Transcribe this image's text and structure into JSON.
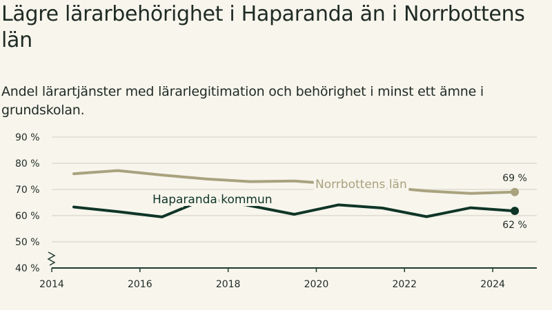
{
  "title": "Lägre lärarbehörighet i Haparanda än i Norrbottens län",
  "subtitle": "Andel lärartjänster med lärarlegitimation och behörighet i minst ett ämne i grundskolan.",
  "colors": {
    "background": "#f7f5ec",
    "kommun": "#0f3527",
    "lan": "#a8a27e",
    "grid": "#dedbd0",
    "axis": "#1f3a2e"
  },
  "chart_data": {
    "type": "line",
    "title": "Lägre lärarbehörighet i Haparanda än i Norrbottens län",
    "subtitle": "Andel lärartjänster med lärarlegitimation och behörighet i minst ett ämne i grundskolan.",
    "xlim": [
      2014,
      2025
    ],
    "ylim": [
      40,
      90
    ],
    "y_ticks": [
      40,
      50,
      60,
      70,
      80,
      90
    ],
    "y_tick_labels": [
      "40 %",
      "50 %",
      "60 %",
      "70 %",
      "80 %",
      "90 %"
    ],
    "x_ticks": [
      2014,
      2016,
      2018,
      2020,
      2022,
      2024
    ],
    "x_tick_labels": [
      "2014",
      "2016",
      "2018",
      "2020",
      "2022",
      "2024"
    ],
    "axis_break": true,
    "grid": true,
    "series": [
      {
        "name": "Norrbottens län",
        "color": "#a8a27e",
        "x": [
          2014.5,
          2015.5,
          2016.5,
          2017.5,
          2018.5,
          2019.5,
          2020.5,
          2021.5,
          2022.5,
          2023.5,
          2024.5
        ],
        "values": [
          76,
          77.2,
          75.5,
          74,
          73,
          73.2,
          72,
          71,
          69.4,
          68.5,
          69
        ],
        "end_label": "69 %"
      },
      {
        "name": "Haparanda kommun",
        "color": "#0f3527",
        "x": [
          2014.5,
          2015.5,
          2016.5,
          2017.5,
          2018.5,
          2019.5,
          2020.5,
          2021.5,
          2022.5,
          2023.5,
          2024.5
        ],
        "values": [
          63.3,
          61.5,
          59.5,
          66.5,
          63.8,
          60.5,
          64.1,
          62.9,
          59.6,
          63,
          61.8
        ],
        "end_label": "62 %"
      }
    ]
  }
}
